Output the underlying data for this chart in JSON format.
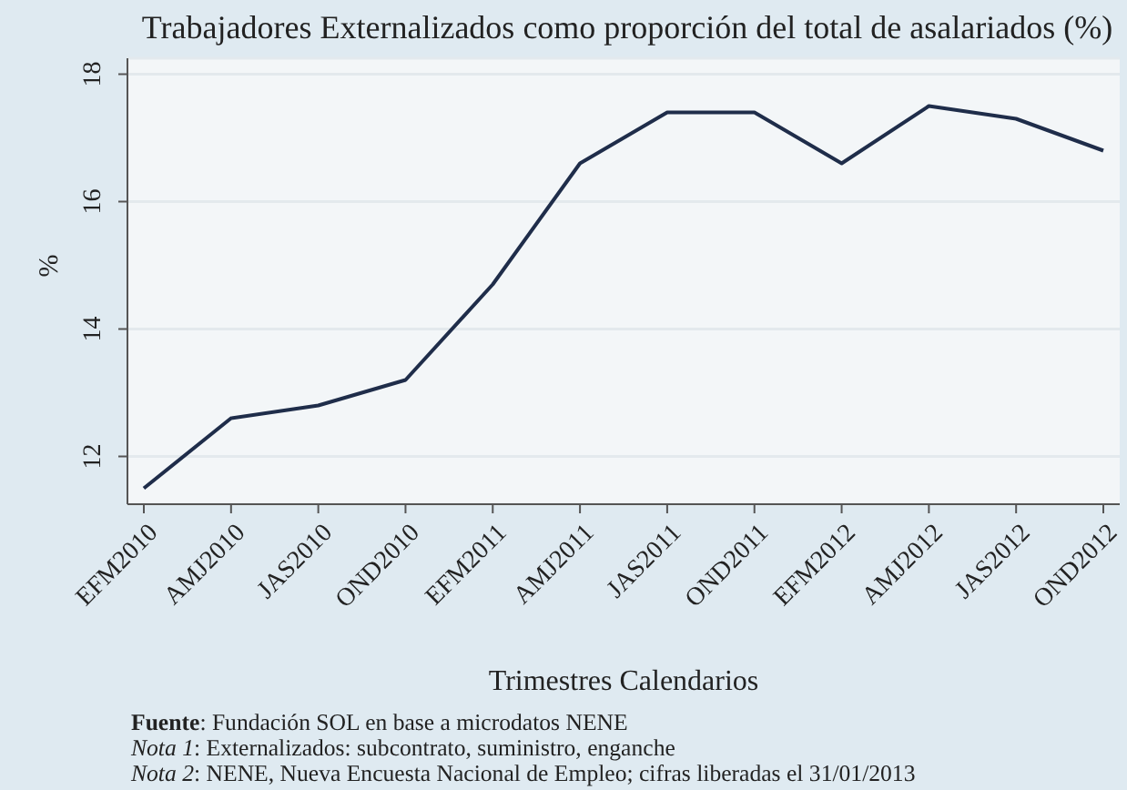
{
  "chart_data": {
    "type": "line",
    "title": "Trabajadores Externalizados como proporción del total de asalariados (%)",
    "xlabel": "Trimestres Calendarios",
    "ylabel": "%",
    "categories": [
      "EFM2010",
      "AMJ2010",
      "JAS2010",
      "OND2010",
      "EFM2011",
      "AMJ2011",
      "JAS2011",
      "OND2011",
      "EFM2012",
      "AMJ2012",
      "JAS2012",
      "OND2012"
    ],
    "values": [
      11.5,
      12.6,
      12.8,
      13.2,
      14.7,
      16.6,
      17.4,
      17.4,
      16.6,
      17.5,
      17.3,
      16.8
    ],
    "color": "#1f2d4a",
    "ylim": [
      11.25,
      18.25
    ],
    "yticks": [
      12,
      14,
      16,
      18
    ],
    "grid": "y",
    "marker": "none",
    "annotations": [
      "Fuente: Fundación SOL en base a microdatos NENE",
      "Nota 1: Externalizados: subcontrato, suministro, enganche",
      "Nota 2: NENE, Nueva Encuesta Nacional de Empleo; cifras liberadas el 31/01/2013"
    ]
  }
}
